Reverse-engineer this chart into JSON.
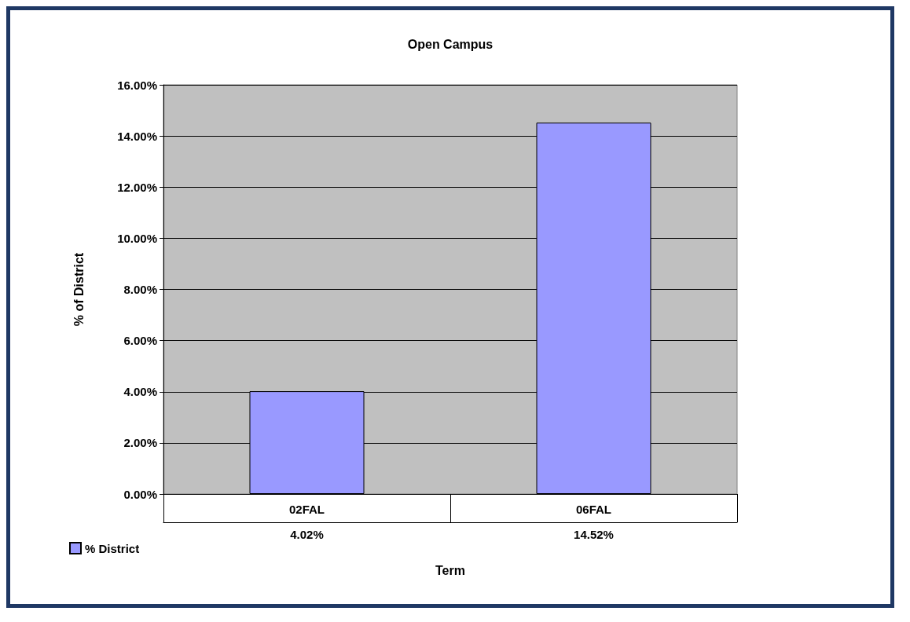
{
  "chart_data": {
    "type": "bar",
    "title": "Open Campus",
    "xlabel": "Term",
    "ylabel": "% of District",
    "categories": [
      "02FAL",
      "06FAL"
    ],
    "series": [
      {
        "name": "% District",
        "color": "#9999ff",
        "values": [
          4.02,
          14.52
        ],
        "value_labels": [
          "4.02%",
          "14.52%"
        ]
      }
    ],
    "ylim": [
      0,
      16
    ],
    "yticks": [
      {
        "value": 0,
        "label": "0.00%"
      },
      {
        "value": 2,
        "label": "2.00%"
      },
      {
        "value": 4,
        "label": "4.00%"
      },
      {
        "value": 6,
        "label": "6.00%"
      },
      {
        "value": 8,
        "label": "8.00%"
      },
      {
        "value": 10,
        "label": "10.00%"
      },
      {
        "value": 12,
        "label": "12.00%"
      },
      {
        "value": 14,
        "label": "14.00%"
      },
      {
        "value": 16,
        "label": "16.00%"
      }
    ],
    "grid": "y",
    "legend": "bottom left"
  }
}
